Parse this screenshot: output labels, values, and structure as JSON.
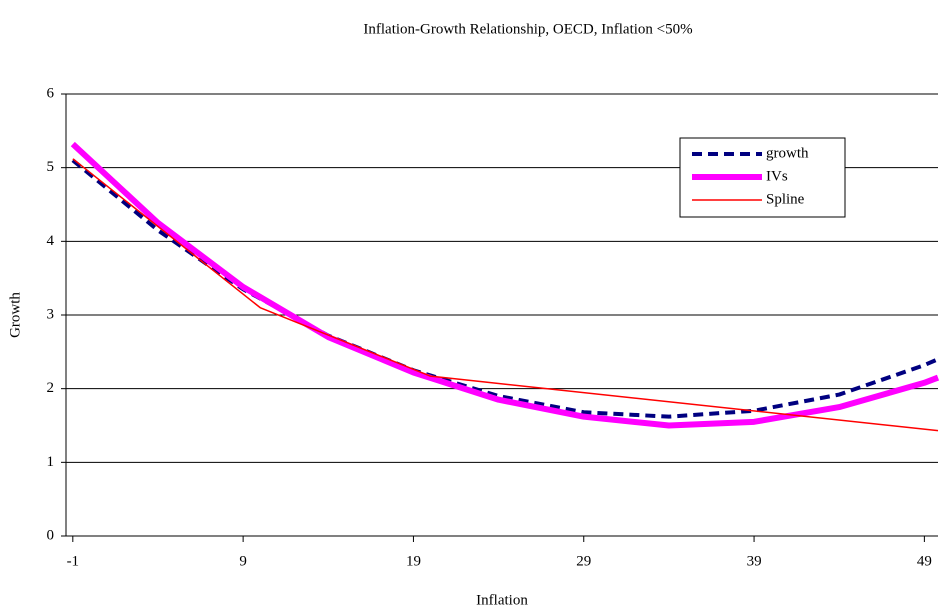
{
  "chart_data": {
    "type": "line",
    "title": "Inflation-Growth Relationship, OECD, Inflation <50%",
    "x_label": "Inflation",
    "y_label": "Growth",
    "xlim": [
      -1.4,
      49.8
    ],
    "xticks": [
      -1,
      9,
      19,
      29,
      39,
      49
    ],
    "ylim": [
      0,
      6
    ],
    "yticks": [
      0,
      1,
      2,
      3,
      4,
      5,
      6
    ],
    "grid": true,
    "legend": "upper right",
    "series": [
      {
        "name": "growth",
        "color": "#000080",
        "style": "dashed",
        "x": [
          -1,
          4,
          9,
          14,
          19,
          24,
          29,
          34,
          39,
          44,
          49,
          49.8
        ],
        "values": [
          5.1,
          4.15,
          3.35,
          2.72,
          2.25,
          1.9,
          1.68,
          1.62,
          1.7,
          1.92,
          2.32,
          2.4
        ]
      },
      {
        "name": "IVs",
        "color": "#ff00ff",
        "style": "thick",
        "x": [
          -1,
          4,
          9,
          14,
          19,
          24,
          29,
          34,
          39,
          44,
          49,
          49.8
        ],
        "values": [
          5.32,
          4.25,
          3.38,
          2.7,
          2.22,
          1.85,
          1.62,
          1.5,
          1.55,
          1.75,
          2.08,
          2.15
        ]
      },
      {
        "name": "Spline",
        "color": "#ff0000",
        "style": "solid",
        "x": [
          -1,
          10,
          20,
          49.8
        ],
        "values": [
          5.12,
          3.1,
          2.17,
          1.43
        ]
      }
    ]
  }
}
